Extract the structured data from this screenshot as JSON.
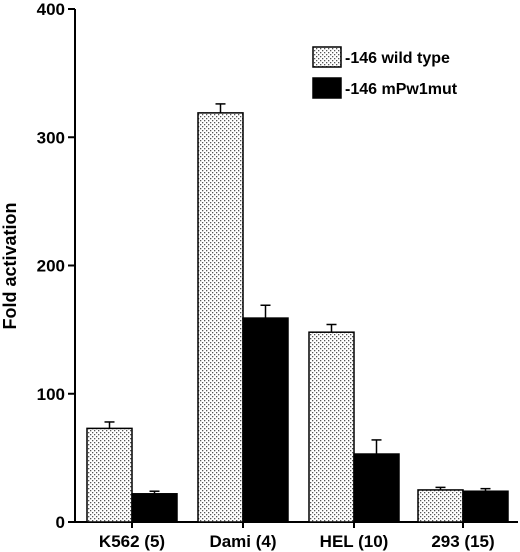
{
  "chart_data": {
    "type": "bar",
    "categories": [
      "K562 (5)",
      "Dami (4)",
      "HEL (10)",
      "293 (15)"
    ],
    "series": [
      {
        "name": "-146 wild type",
        "values": [
          73,
          319,
          148,
          25
        ],
        "errors": [
          5,
          7,
          6,
          2
        ],
        "fill": "dotted"
      },
      {
        "name": "-146 mPw1mut",
        "values": [
          22,
          159,
          53,
          24
        ],
        "errors": [
          2,
          10,
          11,
          2
        ],
        "fill": "#000000"
      }
    ],
    "ylabel": "Fold  activation",
    "xlabel": "",
    "ylim": [
      0,
      400
    ],
    "yticks": [
      0,
      100,
      200,
      300,
      400
    ],
    "legend": "top-right",
    "grid": false
  }
}
